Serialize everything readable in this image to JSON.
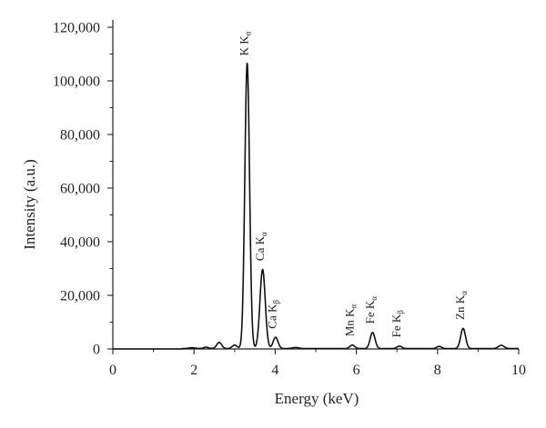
{
  "chart_data": {
    "type": "line",
    "xlabel": "Energy (keV)",
    "ylabel": "Intensity (a.u.)",
    "xlim": [
      0,
      10
    ],
    "ylim": [
      0,
      120000
    ],
    "xticks": [
      0,
      2,
      4,
      6,
      8,
      10
    ],
    "xtick_labels": [
      "0",
      "2",
      "4",
      "6",
      "8",
      "10"
    ],
    "yticks": [
      0,
      20000,
      40000,
      60000,
      80000,
      100000,
      120000
    ],
    "ytick_labels": [
      "0",
      "20,000",
      "40,000",
      "60,000",
      "80,000",
      "100,000",
      "120,000"
    ],
    "grid": false,
    "line_color": "#111111",
    "peaks": [
      {
        "center": 1.95,
        "height": 300,
        "width": 0.08
      },
      {
        "center": 2.3,
        "height": 500,
        "width": 0.06
      },
      {
        "center": 2.62,
        "height": 2300,
        "width": 0.06
      },
      {
        "center": 3.0,
        "height": 1300,
        "width": 0.06
      },
      {
        "center": 3.31,
        "height": 106500,
        "width": 0.058
      },
      {
        "center": 3.69,
        "height": 29500,
        "width": 0.065
      },
      {
        "center": 4.01,
        "height": 4200,
        "width": 0.06
      },
      {
        "center": 4.5,
        "height": 400,
        "width": 0.08
      },
      {
        "center": 5.9,
        "height": 1300,
        "width": 0.06
      },
      {
        "center": 6.4,
        "height": 6000,
        "width": 0.06
      },
      {
        "center": 7.06,
        "height": 900,
        "width": 0.06
      },
      {
        "center": 8.04,
        "height": 800,
        "width": 0.06
      },
      {
        "center": 8.63,
        "height": 7500,
        "width": 0.06
      },
      {
        "center": 9.57,
        "height": 1200,
        "width": 0.07
      }
    ],
    "peak_labels": [
      {
        "element": "K",
        "line": "K",
        "sub": "α",
        "x": 3.33,
        "y": 108000
      },
      {
        "element": "Ca",
        "line": "K",
        "sub": "α",
        "x": 3.72,
        "y": 31500
      },
      {
        "element": "Ca",
        "line": "K",
        "sub": "β",
        "x": 4.03,
        "y": 6200
      },
      {
        "element": "Mn",
        "line": "K",
        "sub": "α",
        "x": 5.93,
        "y": 3300
      },
      {
        "element": "Fe",
        "line": "K",
        "sub": "α",
        "x": 6.43,
        "y": 8000
      },
      {
        "element": "Fe",
        "line": "K",
        "sub": "β",
        "x": 7.09,
        "y": 2900
      },
      {
        "element": "Zn",
        "line": "K",
        "sub": "α",
        "x": 8.66,
        "y": 9500
      }
    ]
  }
}
